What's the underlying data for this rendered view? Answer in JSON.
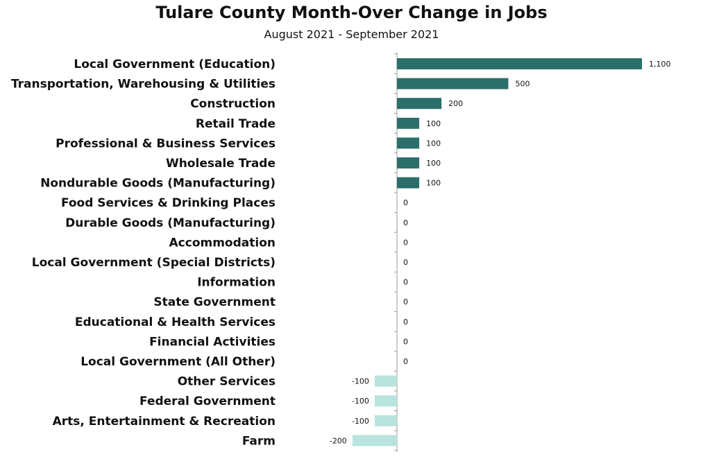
{
  "colors": {
    "positive": "#2a6f6a",
    "negative": "#b9e3dd",
    "axis": "#999999"
  },
  "chart_data": {
    "type": "bar",
    "orientation": "horizontal",
    "title": "Tulare County Month-Over Change in Jobs",
    "subtitle": "August 2021 - September 2021",
    "xlabel": "",
    "ylabel": "",
    "xlim": [
      -200,
      1100
    ],
    "grid": false,
    "legend": "none",
    "categories": [
      "Local Government (Education)",
      "Transportation, Warehousing & Utilities",
      "Construction",
      "Retail Trade",
      "Professional & Business Services",
      "Wholesale Trade",
      "Nondurable Goods (Manufacturing)",
      "Food Services & Drinking Places",
      "Durable Goods (Manufacturing)",
      "Accommodation",
      "Local Government (Special Districts)",
      "Information",
      "State Government",
      "Educational & Health Services",
      "Financial Activities",
      "Local Government (All Other)",
      "Other Services",
      "Federal Government",
      "Arts, Entertainment & Recreation",
      "Farm"
    ],
    "values": [
      1100,
      500,
      200,
      100,
      100,
      100,
      100,
      0,
      0,
      0,
      0,
      0,
      0,
      0,
      0,
      0,
      -100,
      -100,
      -100,
      -200
    ],
    "value_labels": [
      "1,100",
      "500",
      "200",
      "100",
      "100",
      "100",
      "100",
      "0",
      "0",
      "0",
      "0",
      "0",
      "0",
      "0",
      "0",
      "0",
      "-100",
      "-100",
      "-100",
      "-200"
    ]
  }
}
